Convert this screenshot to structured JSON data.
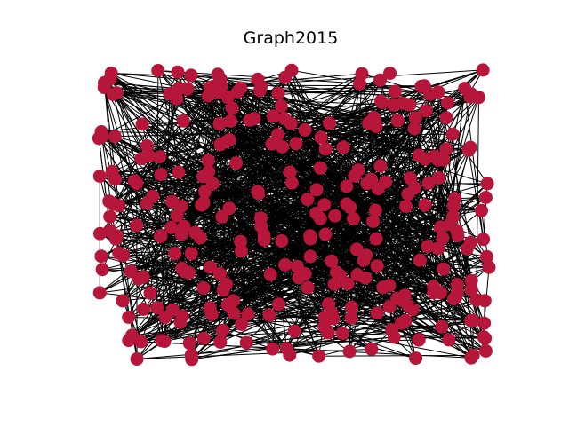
{
  "title": "Graph2015",
  "colors": {
    "node": "#b5163a",
    "edge": "#000000",
    "background": "#ffffff"
  },
  "graph": {
    "layout": "random",
    "node_count": 320,
    "edge_density": "dense"
  }
}
